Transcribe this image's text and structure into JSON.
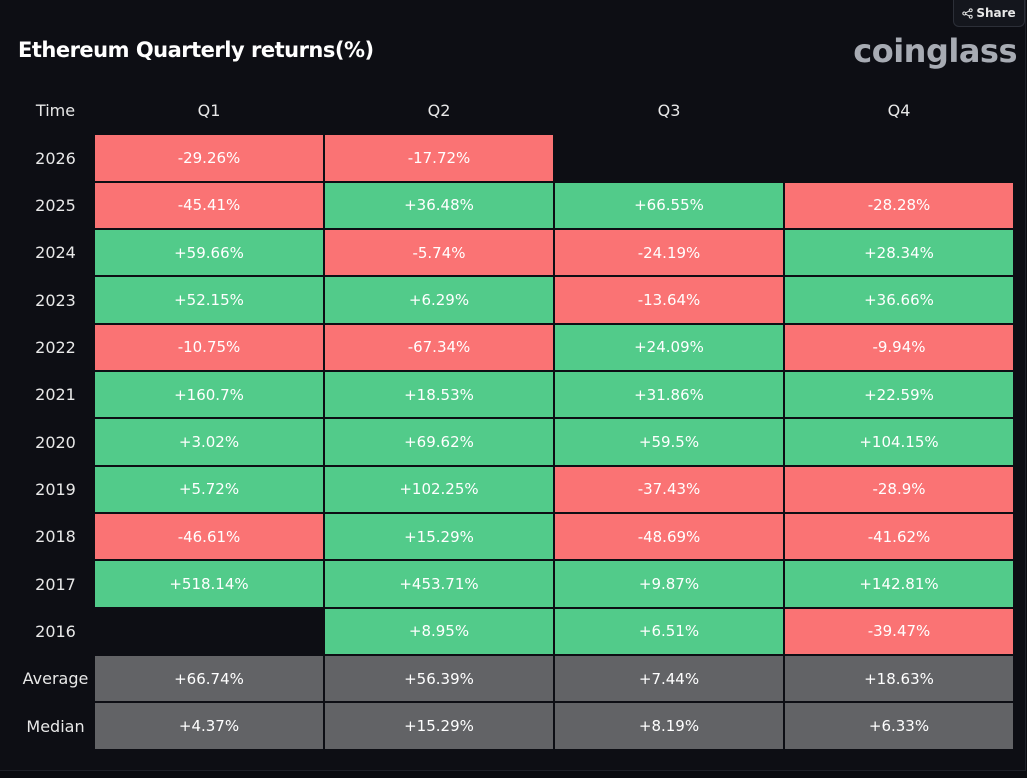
{
  "share_label": "Share",
  "title": "Ethereum Quarterly returns(%)",
  "brand": "coinglass",
  "colors": {
    "positive": "#52cb8a",
    "negative": "#fa7374",
    "stat": "#626366",
    "background": "#0d0e14"
  },
  "chart_data": {
    "type": "table",
    "title": "Ethereum Quarterly returns(%)",
    "columns": [
      "Time",
      "Q1",
      "Q2",
      "Q3",
      "Q4"
    ],
    "rows": [
      {
        "label": "2026",
        "values": [
          "-29.26%",
          "-17.72%",
          "",
          ""
        ]
      },
      {
        "label": "2025",
        "values": [
          "-45.41%",
          "+36.48%",
          "+66.55%",
          "-28.28%"
        ]
      },
      {
        "label": "2024",
        "values": [
          "+59.66%",
          "-5.74%",
          "-24.19%",
          "+28.34%"
        ]
      },
      {
        "label": "2023",
        "values": [
          "+52.15%",
          "+6.29%",
          "-13.64%",
          "+36.66%"
        ]
      },
      {
        "label": "2022",
        "values": [
          "-10.75%",
          "-67.34%",
          "+24.09%",
          "-9.94%"
        ]
      },
      {
        "label": "2021",
        "values": [
          "+160.7%",
          "+18.53%",
          "+31.86%",
          "+22.59%"
        ]
      },
      {
        "label": "2020",
        "values": [
          "+3.02%",
          "+69.62%",
          "+59.5%",
          "+104.15%"
        ]
      },
      {
        "label": "2019",
        "values": [
          "+5.72%",
          "+102.25%",
          "-37.43%",
          "-28.9%"
        ]
      },
      {
        "label": "2018",
        "values": [
          "-46.61%",
          "+15.29%",
          "-48.69%",
          "-41.62%"
        ]
      },
      {
        "label": "2017",
        "values": [
          "+518.14%",
          "+453.71%",
          "+9.87%",
          "+142.81%"
        ]
      },
      {
        "label": "2016",
        "values": [
          "",
          "+8.95%",
          "+6.51%",
          "-39.47%"
        ]
      }
    ],
    "summary_rows": [
      {
        "label": "Average",
        "values": [
          "+66.74%",
          "+56.39%",
          "+7.44%",
          "+18.63%"
        ]
      },
      {
        "label": "Median",
        "values": [
          "+4.37%",
          "+15.29%",
          "+8.19%",
          "+6.33%"
        ]
      }
    ]
  }
}
